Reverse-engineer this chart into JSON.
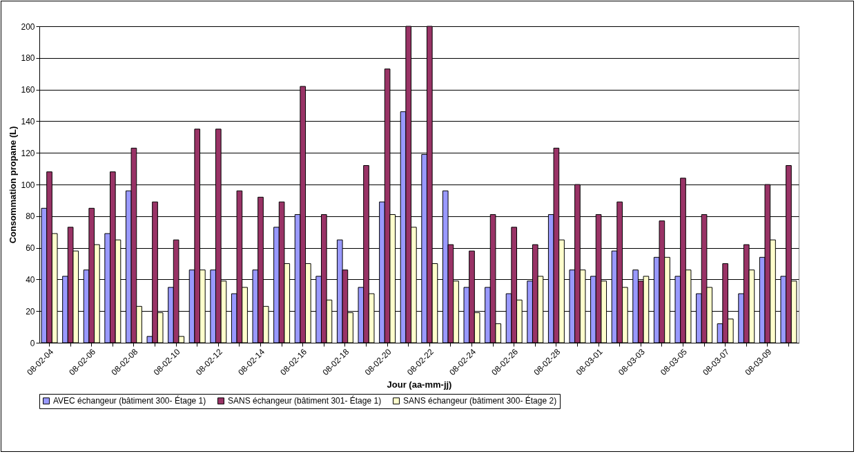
{
  "chart_data": {
    "type": "bar",
    "xlabel": "Jour (aa-mm-jj)",
    "ylabel": "Consommation propane (L)",
    "categories": [
      "08-02-04",
      null,
      "08-02-06",
      null,
      "08-02-08",
      null,
      "08-02-10",
      null,
      "08-02-12",
      null,
      "08-02-14",
      null,
      "08-02-16",
      null,
      "08-02-18",
      null,
      "08-02-20",
      null,
      "08-02-22",
      null,
      "08-02-24",
      null,
      "08-02-26",
      null,
      "08-02-28",
      null,
      "08-03-01",
      null,
      "08-03-03",
      null,
      "08-03-05",
      null,
      "08-03-07",
      null,
      "08-03-09",
      null
    ],
    "series": [
      {
        "name": "AVEC échangeur (bâtiment 300- Étage 1)",
        "color": "#9999ff",
        "values": [
          85,
          42,
          46,
          69,
          96,
          4,
          35,
          46,
          46,
          31,
          46,
          73,
          81,
          42,
          65,
          35,
          89,
          146,
          119,
          96,
          35,
          35,
          31,
          39,
          81,
          46,
          42,
          58,
          46,
          54,
          42,
          31,
          12,
          31,
          54,
          42
        ]
      },
      {
        "name": "SANS échangeur (bâtiment 301- Étage 1)",
        "color": "#993366",
        "values": [
          108,
          73,
          85,
          108,
          123,
          89,
          65,
          135,
          135,
          96,
          92,
          89,
          162,
          81,
          46,
          112,
          173,
          200,
          200,
          62,
          58,
          81,
          73,
          62,
          123,
          100,
          81,
          89,
          39,
          77,
          104,
          81,
          50,
          62,
          100,
          112
        ]
      },
      {
        "name": "SANS échangeur (bâtiment 300- Étage 2)",
        "color": "#ffffcc",
        "values": [
          69,
          58,
          62,
          65,
          23,
          19,
          4,
          46,
          39,
          35,
          23,
          50,
          50,
          27,
          19,
          31,
          81,
          73,
          50,
          39,
          19,
          12,
          27,
          42,
          65,
          46,
          39,
          35,
          42,
          54,
          46,
          35,
          15,
          46,
          65,
          39
        ]
      }
    ],
    "ylim": [
      0,
      200
    ],
    "yticks": [
      0,
      20,
      40,
      60,
      80,
      100,
      120,
      140,
      160,
      180,
      200
    ],
    "grid": "y",
    "legend": "bottom"
  }
}
